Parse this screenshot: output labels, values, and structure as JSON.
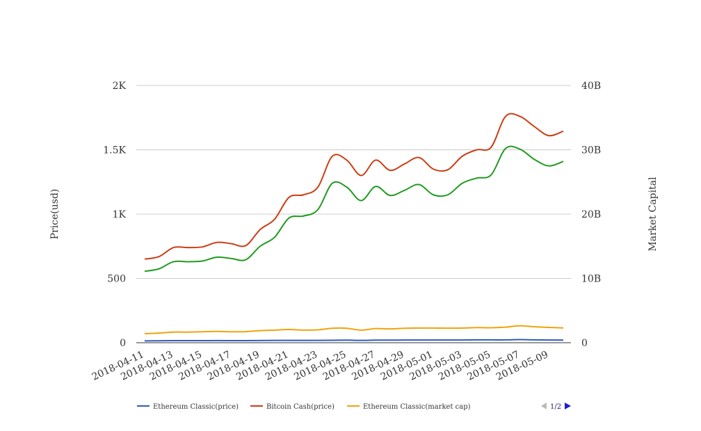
{
  "chart_data": {
    "type": "line",
    "x": [
      "2018-04-11",
      "2018-04-12",
      "2018-04-13",
      "2018-04-14",
      "2018-04-15",
      "2018-04-16",
      "2018-04-17",
      "2018-04-18",
      "2018-04-19",
      "2018-04-20",
      "2018-04-21",
      "2018-04-22",
      "2018-04-23",
      "2018-04-24",
      "2018-04-25",
      "2018-04-26",
      "2018-04-27",
      "2018-04-28",
      "2018-04-29",
      "2018-04-30",
      "2018-05-01",
      "2018-05-02",
      "2018-05-03",
      "2018-05-04",
      "2018-05-05",
      "2018-05-06",
      "2018-05-07",
      "2018-05-08",
      "2018-05-09",
      "2018-05-10"
    ],
    "x_tick_labels": [
      "2018-04-11",
      "2018-04-13",
      "2018-04-15",
      "2018-04-17",
      "2018-04-19",
      "2018-04-21",
      "2018-04-23",
      "2018-04-25",
      "2018-04-27",
      "2018-04-29",
      "2018-05-01",
      "2018-05-03",
      "2018-05-05",
      "2018-05-07",
      "2018-05-09"
    ],
    "y_left": {
      "label": "Price(usd)",
      "range": [
        0,
        2000
      ],
      "ticks": [
        0,
        500,
        1000,
        1500,
        2000
      ],
      "tick_labels": [
        "0",
        "500",
        "1K",
        "1.5K",
        "2K"
      ]
    },
    "y_right": {
      "label": "Market Capital",
      "range": [
        0,
        40000000000
      ],
      "ticks": [
        0,
        10000000000,
        20000000000,
        30000000000,
        40000000000
      ],
      "tick_labels": [
        "0",
        "10B",
        "20B",
        "30B",
        "40B"
      ]
    },
    "grid": true,
    "legend_position": "bottom",
    "series": [
      {
        "name": "Ethereum Classic(price)",
        "axis": "left",
        "color": "#2e5cb8",
        "values": [
          14,
          15,
          16,
          16,
          16,
          17,
          16,
          16,
          17,
          18,
          18,
          18,
          18,
          19,
          20,
          18,
          20,
          20,
          21,
          21,
          21,
          21,
          21,
          22,
          22,
          22,
          24,
          22,
          21,
          20
        ]
      },
      {
        "name": "Bitcoin Cash(price)",
        "axis": "left",
        "color": "#cc3d14",
        "values": [
          650,
          670,
          740,
          740,
          745,
          780,
          770,
          755,
          880,
          960,
          1130,
          1150,
          1210,
          1450,
          1420,
          1300,
          1420,
          1340,
          1390,
          1440,
          1350,
          1345,
          1450,
          1500,
          1520,
          1760,
          1760,
          1680,
          1610,
          1645
        ]
      },
      {
        "name": "",
        "axis": "right",
        "color": "#1f9a1f",
        "values": [
          11100000000,
          11500000000,
          12600000000,
          12600000000,
          12700000000,
          13300000000,
          13100000000,
          12900000000,
          15000000000,
          16400000000,
          19400000000,
          19700000000,
          20700000000,
          24800000000,
          24200000000,
          22100000000,
          24300000000,
          22900000000,
          23700000000,
          24600000000,
          23000000000,
          23000000000,
          24800000000,
          25600000000,
          26100000000,
          30200000000,
          30100000000,
          28500000000,
          27500000000,
          28200000000
        ]
      },
      {
        "name": "Ethereum Classic(market cap)",
        "axis": "right",
        "color": "#f0a30a",
        "values": [
          1400000000,
          1500000000,
          1650000000,
          1650000000,
          1700000000,
          1760000000,
          1700000000,
          1720000000,
          1880000000,
          1960000000,
          2050000000,
          1960000000,
          2000000000,
          2250000000,
          2250000000,
          1950000000,
          2200000000,
          2150000000,
          2250000000,
          2280000000,
          2280000000,
          2260000000,
          2280000000,
          2350000000,
          2330000000,
          2420000000,
          2640000000,
          2480000000,
          2380000000,
          2300000000
        ]
      }
    ]
  },
  "pager": {
    "label": "1/2"
  }
}
